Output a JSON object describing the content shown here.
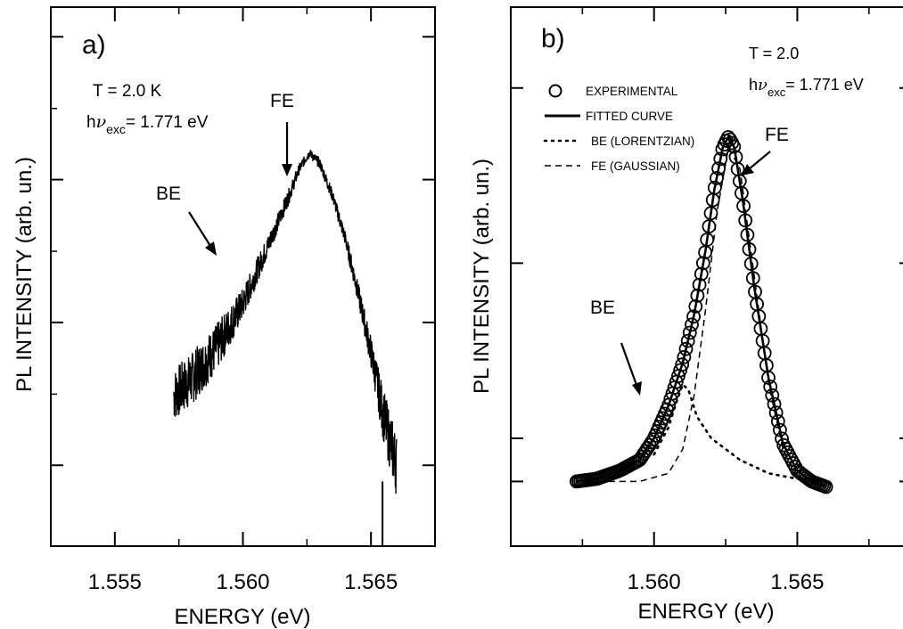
{
  "chart_data": [
    {
      "type": "line",
      "panel_label": "a)",
      "xlabel": "ENERGY (eV)",
      "ylabel": "PL INTENSITY (arb. un.)",
      "xlim": [
        1.5525,
        1.5675
      ],
      "ylim": [
        0.0,
        1.0
      ],
      "x_ticks": [
        1.555,
        1.56,
        1.565
      ],
      "x_tick_labels": [
        "1.555",
        "1.560",
        "1.565"
      ],
      "y_scale": "log",
      "y_tick_labels_shown": false,
      "info_lines": {
        "temp": "T = 2.0 K",
        "exc_prefix": "h",
        "exc_nu": "ν",
        "exc_sub": "exc",
        "exc_value": "= 1.771 eV"
      },
      "annotations": [
        {
          "text": "FE",
          "x": 1.5627,
          "y": 0.76
        },
        {
          "text": "BE",
          "x": 1.5604,
          "y": 0.55
        }
      ],
      "series": [
        {
          "x": [
            1.5573,
            1.558,
            1.559,
            1.56,
            1.561,
            1.5618,
            1.5622,
            1.5626,
            1.563,
            1.5635,
            1.564,
            1.5645,
            1.565,
            1.5655,
            1.566
          ],
          "values": [
            0.28,
            0.31,
            0.37,
            0.45,
            0.56,
            0.65,
            0.7,
            0.73,
            0.71,
            0.65,
            0.57,
            0.47,
            0.36,
            0.24,
            0.15
          ],
          "noise": [
            0.05,
            0.05,
            0.045,
            0.03,
            0.02,
            0.015,
            0.01,
            0.008,
            0.01,
            0.012,
            0.015,
            0.02,
            0.03,
            0.05,
            0.06
          ]
        }
      ]
    },
    {
      "type": "scatter",
      "panel_label": "b)",
      "xlabel": "ENERGY (eV)",
      "ylabel": "PL INTENSITY (arb. un.)",
      "xlim": [
        1.555,
        1.569
      ],
      "ylim": [
        0.0,
        1.0
      ],
      "x_ticks": [
        1.56,
        1.565
      ],
      "x_tick_labels": [
        "1.560",
        "1.565"
      ],
      "y_tick_labels_shown": false,
      "info_lines": {
        "temp": "T = 2.0",
        "exc_prefix": "h",
        "exc_nu": "ν",
        "exc_sub": "exc",
        "exc_value": "= 1.771 eV"
      },
      "legend": [
        {
          "label": "EXPERIMENTAL",
          "style": "circle"
        },
        {
          "label": "FITTED CURVE",
          "style": "solid"
        },
        {
          "label": "BE (LORENTZIAN)",
          "style": "dotted"
        },
        {
          "label": "FE (GAUSSIAN)",
          "style": "dashed"
        }
      ],
      "annotations": [
        {
          "text": "FE",
          "x": 1.563,
          "y": 0.88
        },
        {
          "text": "BE",
          "x": 1.5597,
          "y": 0.53
        }
      ],
      "series": [
        {
          "style": "circle",
          "x": [
            1.5573,
            1.558,
            1.5588,
            1.5595,
            1.56,
            1.5605,
            1.561,
            1.5614,
            1.5618,
            1.5621,
            1.5624,
            1.5626,
            1.5628,
            1.5631,
            1.5635,
            1.564,
            1.5645,
            1.565,
            1.5655,
            1.566
          ],
          "values": [
            0.12,
            0.125,
            0.14,
            0.16,
            0.2,
            0.26,
            0.34,
            0.43,
            0.55,
            0.66,
            0.74,
            0.76,
            0.74,
            0.64,
            0.48,
            0.31,
            0.19,
            0.14,
            0.12,
            0.11
          ]
        },
        {
          "style": "solid",
          "x": [
            1.5573,
            1.558,
            1.5588,
            1.5595,
            1.56,
            1.5605,
            1.561,
            1.5614,
            1.5618,
            1.5621,
            1.5624,
            1.5626,
            1.5628,
            1.5631,
            1.5635,
            1.564,
            1.5645,
            1.565,
            1.5655,
            1.566
          ],
          "values": [
            0.12,
            0.125,
            0.14,
            0.16,
            0.2,
            0.26,
            0.34,
            0.43,
            0.55,
            0.66,
            0.74,
            0.76,
            0.74,
            0.64,
            0.48,
            0.31,
            0.19,
            0.14,
            0.12,
            0.11
          ]
        },
        {
          "style": "dotted",
          "x": [
            1.56,
            1.5605,
            1.5608,
            1.561,
            1.5612,
            1.5615,
            1.562,
            1.563,
            1.564,
            1.565,
            1.566
          ],
          "values": [
            0.17,
            0.22,
            0.27,
            0.3,
            0.29,
            0.24,
            0.2,
            0.16,
            0.135,
            0.125,
            0.12
          ]
        },
        {
          "style": "dashed",
          "x": [
            1.5573,
            1.5595,
            1.5605,
            1.561,
            1.5614,
            1.5618,
            1.5622,
            1.5626,
            1.563,
            1.5635,
            1.564,
            1.5645,
            1.565,
            1.5655,
            1.566
          ],
          "values": [
            0.12,
            0.12,
            0.135,
            0.18,
            0.28,
            0.44,
            0.62,
            0.74,
            0.7,
            0.5,
            0.3,
            0.18,
            0.13,
            0.12,
            0.115
          ]
        }
      ]
    }
  ]
}
